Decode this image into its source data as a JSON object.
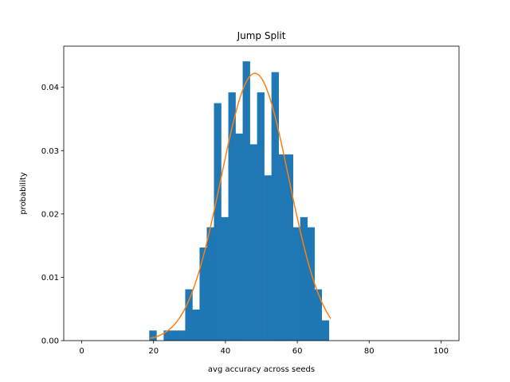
{
  "chart_data": {
    "type": "bar",
    "title": "Jump Split",
    "xlabel": "avg accuracy across seeds",
    "ylabel": "probability",
    "xlim": [
      -5,
      105
    ],
    "ylim": [
      0,
      0.0465
    ],
    "xticks": [
      0,
      20,
      40,
      60,
      80,
      100
    ],
    "yticks": [
      0.0,
      0.01,
      0.02,
      0.03,
      0.04
    ],
    "ytick_labels": [
      "0.00",
      "0.01",
      "0.02",
      "0.03",
      "0.04"
    ],
    "grid": false,
    "bin_width": 2.0,
    "bins": [
      {
        "x0": 18.8,
        "value": 0.0016
      },
      {
        "x0": 20.8,
        "value": 0.0
      },
      {
        "x0": 22.8,
        "value": 0.0016
      },
      {
        "x0": 24.8,
        "value": 0.0016
      },
      {
        "x0": 26.8,
        "value": 0.0016
      },
      {
        "x0": 28.8,
        "value": 0.0081
      },
      {
        "x0": 30.8,
        "value": 0.0049
      },
      {
        "x0": 32.8,
        "value": 0.0147
      },
      {
        "x0": 34.8,
        "value": 0.0179
      },
      {
        "x0": 36.8,
        "value": 0.0375
      },
      {
        "x0": 38.8,
        "value": 0.0195
      },
      {
        "x0": 40.8,
        "value": 0.0392
      },
      {
        "x0": 42.8,
        "value": 0.0327
      },
      {
        "x0": 44.8,
        "value": 0.0441
      },
      {
        "x0": 46.8,
        "value": 0.031
      },
      {
        "x0": 48.8,
        "value": 0.0392
      },
      {
        "x0": 50.8,
        "value": 0.0261
      },
      {
        "x0": 52.8,
        "value": 0.0424
      },
      {
        "x0": 54.8,
        "value": 0.0294
      },
      {
        "x0": 56.8,
        "value": 0.0294
      },
      {
        "x0": 58.8,
        "value": 0.0179
      },
      {
        "x0": 60.8,
        "value": 0.0195
      },
      {
        "x0": 62.8,
        "value": 0.0179
      },
      {
        "x0": 64.8,
        "value": 0.0081
      },
      {
        "x0": 66.8,
        "value": 0.0032
      }
    ],
    "curve": {
      "type": "line",
      "mean": 48.2,
      "std": 9.45,
      "x_range": [
        19.0,
        69.3
      ]
    },
    "colors": {
      "bars": "#1f77b4",
      "curve": "#ff7f0e"
    }
  }
}
